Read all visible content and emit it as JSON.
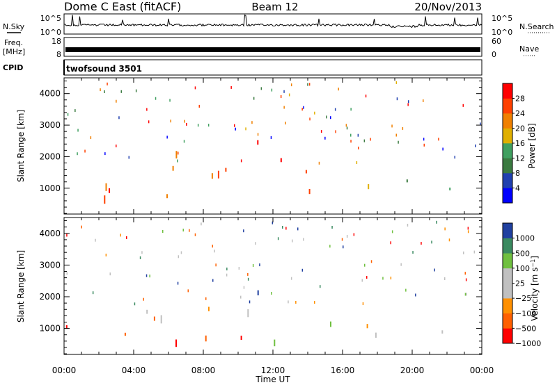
{
  "header": {
    "station": "Dome C East (fitACF)",
    "beam": "Beam 12",
    "date": "20/Nov/2013"
  },
  "panels": {
    "nsky": {
      "left_label": "N.Sky",
      "left_tick_top": "10^5",
      "left_tick_bottom": "10^0",
      "right_label": "N.Search",
      "right_tick_top": "10^5",
      "right_tick_bottom": "10^0"
    },
    "freq": {
      "left_label_line1": "Freq.",
      "left_label_line2": "[MHz]",
      "left_tick_top": "18",
      "left_tick_bottom": "8",
      "right_label": "Nave",
      "right_tick_top": "60",
      "right_tick_bottom": "0"
    },
    "cpid": {
      "label": "CPID",
      "value": "twofsound 3501"
    }
  },
  "colors": {
    "power_scale": [
      "#0000ff",
      "#2040b0",
      "#3a7a40",
      "#40a060",
      "#e0b000",
      "#f08000",
      "#ff4000",
      "#ff0000"
    ],
    "velocity_scale": [
      "#ff0000",
      "#ff6000",
      "#ff9000",
      "#c0c0c0",
      "#c0c0c0",
      "#70c040",
      "#3a8a60",
      "#2040a0"
    ]
  },
  "chart_data": [
    {
      "type": "heatmap",
      "title": "",
      "xlabel": "",
      "ylabel": "Slant Range [km]",
      "x_ticks": [
        "00:00",
        "04:00",
        "08:00",
        "12:00",
        "16:00",
        "20:00",
        "00:00"
      ],
      "y_ticks": [
        "1000",
        "2000",
        "3000",
        "4000"
      ],
      "xlim": [
        0,
        24
      ],
      "ylim": [
        180,
        4500
      ],
      "colorbar": {
        "label": "Power [dB]",
        "range": [
          0,
          32
        ],
        "ticks": [
          "4",
          "8",
          "12",
          "16",
          "20",
          "24",
          "28"
        ]
      },
      "blobs": [
        {
          "t0": 0.0,
          "t1": 3.5,
          "r0": 450,
          "r1": 1500,
          "c": 6
        },
        {
          "t0": 1.5,
          "t1": 3.0,
          "r0": 500,
          "r1": 1100,
          "c": 7
        },
        {
          "t0": 3.5,
          "t1": 6.5,
          "r0": 650,
          "r1": 1500,
          "c": 5
        },
        {
          "t0": 6.0,
          "t1": 8.0,
          "r0": 1000,
          "r1": 2500,
          "c": 4
        },
        {
          "t0": 7.0,
          "t1": 8.0,
          "r0": 2500,
          "r1": 3200,
          "c": 3
        },
        {
          "t0": 8.0,
          "t1": 11.0,
          "r0": 1000,
          "r1": 2500,
          "c": 5
        },
        {
          "t0": 10.0,
          "t1": 12.5,
          "r0": 1300,
          "r1": 2700,
          "c": 6
        },
        {
          "t0": 12.0,
          "t1": 15.5,
          "r0": 900,
          "r1": 1700,
          "c": 6
        },
        {
          "t0": 13.5,
          "t1": 15.0,
          "r0": 500,
          "r1": 900,
          "c": 7
        },
        {
          "t0": 15.0,
          "t1": 18.5,
          "r0": 1000,
          "r1": 1500,
          "c": 4
        },
        {
          "t0": 17.0,
          "t1": 20.5,
          "r0": 250,
          "r1": 500,
          "c": 7
        },
        {
          "t0": 18.0,
          "t1": 22.0,
          "r0": 900,
          "r1": 1300,
          "c": 2
        },
        {
          "t0": 21.5,
          "t1": 24.0,
          "r0": 900,
          "r1": 1800,
          "c": 3
        }
      ]
    },
    {
      "type": "heatmap",
      "title": "",
      "xlabel": "Time UT",
      "ylabel": "Slant Range [km]",
      "x_ticks": [
        "00:00",
        "04:00",
        "08:00",
        "12:00",
        "16:00",
        "20:00",
        "00:00"
      ],
      "y_ticks": [
        "1000",
        "2000",
        "3000",
        "4000"
      ],
      "xlim": [
        0,
        24
      ],
      "ylim": [
        180,
        4500
      ],
      "colorbar": {
        "label": "Velocity [m s^-1]",
        "range": [
          -1500,
          1500
        ],
        "ticks": [
          "1000",
          "500",
          "100",
          "25",
          "−25",
          "−100",
          "−500",
          "−1000"
        ]
      },
      "blobs": [
        {
          "t0": 0.0,
          "t1": 3.5,
          "r0": 500,
          "r1": 1400,
          "c": 1
        },
        {
          "t0": 0.0,
          "t1": 6.0,
          "r0": 1200,
          "r1": 1700,
          "c": 3
        },
        {
          "t0": 3.5,
          "t1": 7.5,
          "r0": 600,
          "r1": 1500,
          "c": 1
        },
        {
          "t0": 7.0,
          "t1": 8.0,
          "r0": 2500,
          "r1": 3200,
          "c": 2
        },
        {
          "t0": 7.5,
          "t1": 11.5,
          "r0": 700,
          "r1": 1600,
          "c": 1
        },
        {
          "t0": 8.0,
          "t1": 11.0,
          "r0": 1500,
          "r1": 2500,
          "c": 3
        },
        {
          "t0": 11.0,
          "t1": 13.0,
          "r0": 1500,
          "r1": 2500,
          "c": 7
        },
        {
          "t0": 12.0,
          "t1": 16.0,
          "r0": 500,
          "r1": 1600,
          "c": 6
        },
        {
          "t0": 16.0,
          "t1": 22.0,
          "r0": 600,
          "r1": 1300,
          "c": 3
        },
        {
          "t0": 17.0,
          "t1": 20.5,
          "r0": 250,
          "r1": 500,
          "c": 5
        },
        {
          "t0": 21.5,
          "t1": 24.0,
          "r0": 900,
          "r1": 1800,
          "c": 3
        }
      ]
    }
  ]
}
